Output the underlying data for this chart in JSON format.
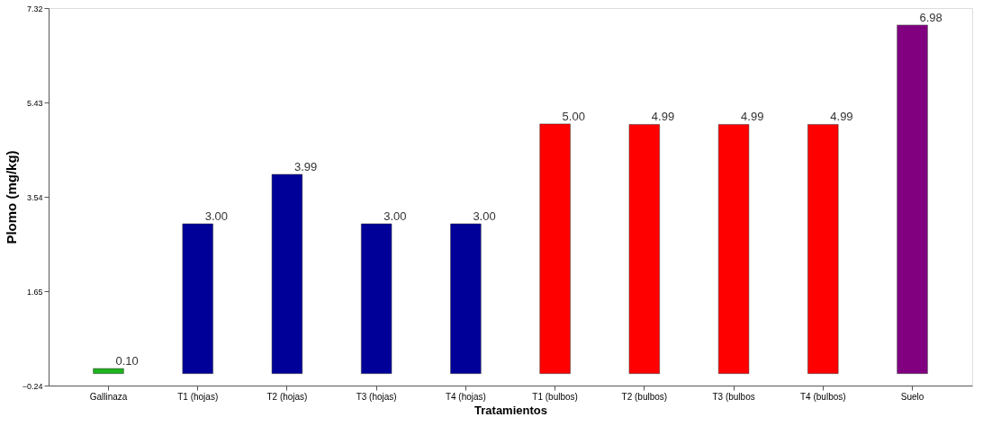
{
  "chart_data": {
    "type": "bar",
    "xlabel": "Tratamientos",
    "ylabel": "Plomo (mg/kg)",
    "categories": [
      "Gallinaza",
      "T1 (hojas)",
      "T2 (hojas)",
      "T3 (hojas)",
      "T4 (hojas)",
      "T1 (bulbos)",
      "T2 (bulbos)",
      "T3 (bulbos",
      "T4 (bulbos)",
      "Suelo"
    ],
    "values": [
      0.1,
      3.0,
      3.99,
      3.0,
      3.0,
      5.0,
      4.99,
      4.99,
      4.99,
      6.98
    ],
    "value_labels": [
      "0.10",
      "3.00",
      "3.99",
      "3.00",
      "3.00",
      "5.00",
      "4.99",
      "4.99",
      "4.99",
      "6.98"
    ],
    "colors": [
      "#1fb41f",
      "#000099",
      "#000099",
      "#000099",
      "#000099",
      "#ff0000",
      "#ff0000",
      "#ff0000",
      "#ff0000",
      "#800080"
    ],
    "ylim": [
      -0.24,
      7.32
    ],
    "yticks": [
      -0.24,
      1.65,
      3.54,
      5.43,
      7.32
    ],
    "grid": false
  }
}
